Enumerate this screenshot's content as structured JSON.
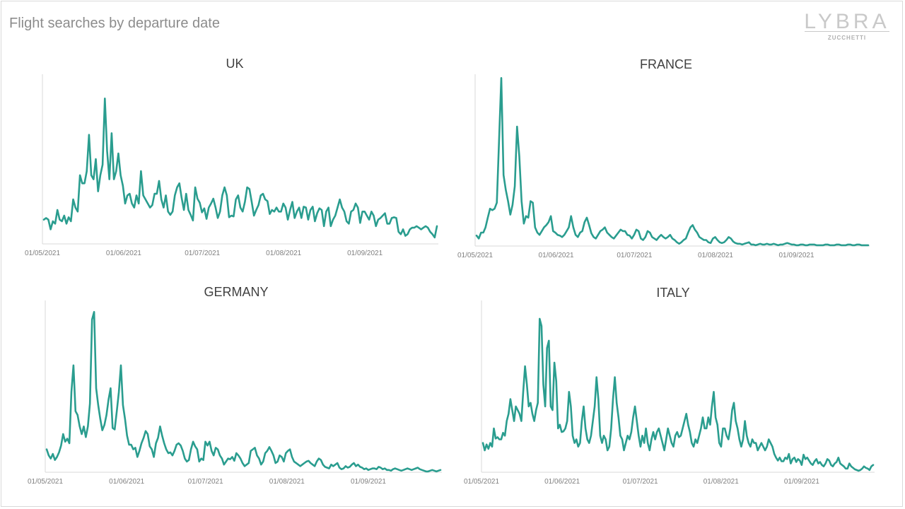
{
  "header": {
    "title": "Flight searches by departure date",
    "logo_text": "LYBRA",
    "logo_subtext": "ZUCCHETTI"
  },
  "colors": {
    "line": "#2a9d8f",
    "axis": "#d9d9d9"
  },
  "chart_data": [
    {
      "type": "line",
      "title": "UK",
      "x_ticks": [
        "01/05/2021",
        "01/06/2021",
        "01/07/2021",
        "01/08/2021",
        "01/09/2021"
      ],
      "x_range": [
        "2021-05-01",
        "2021-09-29"
      ],
      "ylim": [
        0,
        210
      ],
      "series": [
        {
          "values": [
            30,
            32,
            30,
            18,
            28,
            25,
            42,
            30,
            28,
            35,
            25,
            33,
            28,
            55,
            45,
            40,
            85,
            75,
            75,
            90,
            135,
            85,
            80,
            105,
            65,
            85,
            98,
            180,
            115,
            80,
            137,
            80,
            90,
            112,
            85,
            72,
            50,
            60,
            62,
            50,
            45,
            60,
            50,
            90,
            60,
            55,
            50,
            45,
            48,
            62,
            62,
            78,
            55,
            45,
            60,
            40,
            36,
            40,
            60,
            70,
            75,
            57,
            42,
            62,
            42,
            36,
            29,
            70,
            56,
            51,
            39,
            44,
            31,
            45,
            50,
            56,
            45,
            32,
            40,
            60,
            70,
            60,
            33,
            35,
            34,
            55,
            60,
            45,
            40,
            52,
            70,
            68,
            52,
            35,
            42,
            48,
            60,
            62,
            55,
            53,
            37,
            42,
            40,
            45,
            40,
            40,
            50,
            45,
            30,
            42,
            52,
            32,
            40,
            45,
            32,
            46,
            45,
            30,
            42,
            46,
            28,
            38,
            44,
            42,
            22,
            40,
            45,
            22,
            30,
            35,
            45,
            55,
            45,
            40,
            28,
            25,
            40,
            42,
            50,
            45,
            26,
            40,
            40,
            35,
            30,
            40,
            35,
            22,
            30,
            32,
            35,
            38,
            25,
            25,
            32,
            33,
            32,
            15,
            12,
            18,
            10,
            12,
            18,
            20,
            20,
            22,
            20,
            18,
            20,
            22,
            20,
            15,
            12,
            8,
            22
          ]
        }
      ]
    },
    {
      "type": "line",
      "title": "FRANCE",
      "x_ticks": [
        "01/05/2021",
        "01/06/2021",
        "01/07/2021",
        "01/08/2021",
        "01/09/2021"
      ],
      "x_range": [
        "2021-05-01",
        "2021-09-29"
      ],
      "ylim": [
        0,
        230
      ],
      "series": [
        {
          "values": [
            14,
            10,
            18,
            18,
            25,
            38,
            50,
            48,
            50,
            58,
            140,
            225,
            95,
            75,
            60,
            42,
            55,
            80,
            160,
            120,
            60,
            30,
            40,
            38,
            60,
            58,
            25,
            18,
            15,
            20,
            25,
            28,
            32,
            40,
            20,
            18,
            15,
            14,
            12,
            15,
            20,
            25,
            40,
            25,
            15,
            12,
            18,
            20,
            32,
            38,
            28,
            17,
            12,
            10,
            15,
            20,
            22,
            25,
            18,
            15,
            12,
            10,
            14,
            18,
            22,
            20,
            20,
            15,
            14,
            10,
            15,
            22,
            20,
            10,
            8,
            12,
            20,
            18,
            12,
            10,
            8,
            12,
            15,
            12,
            10,
            12,
            15,
            10,
            8,
            5,
            3,
            5,
            8,
            10,
            18,
            25,
            28,
            22,
            18,
            12,
            10,
            8,
            8,
            5,
            4,
            10,
            12,
            8,
            5,
            4,
            5,
            8,
            12,
            10,
            6,
            4,
            3,
            3,
            2,
            3,
            4,
            5,
            2,
            2,
            1,
            2,
            3,
            2,
            2,
            3,
            2,
            2,
            3,
            2,
            1,
            2,
            2,
            3,
            4,
            3,
            2,
            2,
            1,
            1,
            2,
            2,
            1,
            1,
            2,
            2,
            2,
            1,
            1,
            1,
            1,
            2,
            2,
            1,
            1,
            1,
            2,
            2,
            1,
            1,
            1,
            2,
            2,
            1,
            1,
            2,
            2,
            1,
            1,
            1,
            1
          ]
        }
      ]
    },
    {
      "type": "line",
      "title": "GERMANY",
      "x_ticks": [
        "01/05/2021",
        "01/06/2021",
        "01/07/2021",
        "01/08/2021",
        "01/09/2021"
      ],
      "x_range": [
        "2021-05-01",
        "2021-09-29"
      ],
      "ylim": [
        0,
        225
      ],
      "series": [
        {
          "values": [
            30,
            22,
            18,
            24,
            16,
            20,
            26,
            35,
            50,
            40,
            44,
            38,
            105,
            140,
            80,
            75,
            60,
            50,
            60,
            46,
            60,
            90,
            200,
            210,
            110,
            88,
            70,
            55,
            62,
            75,
            95,
            110,
            58,
            56,
            80,
            105,
            140,
            88,
            70,
            48,
            36,
            36,
            30,
            32,
            20,
            28,
            38,
            45,
            54,
            50,
            34,
            30,
            20,
            38,
            45,
            60,
            48,
            38,
            30,
            25,
            26,
            22,
            28,
            36,
            38,
            35,
            28,
            18,
            14,
            16,
            30,
            40,
            34,
            30,
            14,
            18,
            16,
            40,
            35,
            40,
            28,
            22,
            32,
            30,
            22,
            18,
            10,
            14,
            18,
            17,
            20,
            15,
            25,
            22,
            18,
            12,
            8,
            10,
            12,
            28,
            30,
            32,
            22,
            18,
            10,
            14,
            25,
            28,
            33,
            28,
            22,
            12,
            14,
            22,
            20,
            14,
            25,
            28,
            30,
            20,
            14,
            12,
            10,
            8,
            10,
            12,
            14,
            15,
            12,
            10,
            8,
            14,
            18,
            16,
            10,
            7,
            6,
            5,
            10,
            8,
            10,
            12,
            6,
            4,
            5,
            8,
            6,
            7,
            10,
            12,
            8,
            10,
            7,
            6,
            4,
            5,
            3,
            4,
            5,
            5,
            4,
            7,
            6,
            4,
            5,
            3,
            3,
            2,
            4,
            5,
            4,
            3,
            2,
            3,
            4,
            5,
            4,
            3,
            4,
            5,
            6,
            4,
            3,
            2,
            1,
            1,
            2,
            3,
            2,
            1,
            2,
            3
          ]
        }
      ]
    },
    {
      "type": "line",
      "title": "ITALY",
      "x_ticks": [
        "01/05/2021",
        "01/06/2021",
        "01/07/2021",
        "01/08/2021",
        "01/09/2021"
      ],
      "x_range": [
        "2021-05-01",
        "2021-09-29"
      ],
      "ylim": [
        0,
        235
      ],
      "series": [
        {
          "values": [
            40,
            30,
            38,
            32,
            40,
            35,
            60,
            46,
            48,
            45,
            45,
            54,
            50,
            70,
            80,
            100,
            85,
            70,
            90,
            85,
            80,
            70,
            110,
            145,
            120,
            90,
            95,
            80,
            70,
            85,
            95,
            210,
            200,
            120,
            90,
            170,
            180,
            90,
            85,
            150,
            125,
            60,
            65,
            55,
            56,
            60,
            70,
            110,
            90,
            50,
            40,
            45,
            35,
            40,
            70,
            90,
            60,
            45,
            40,
            50,
            70,
            90,
            130,
            100,
            50,
            40,
            50,
            45,
            30,
            35,
            60,
            100,
            130,
            95,
            75,
            50,
            45,
            30,
            40,
            50,
            45,
            55,
            75,
            90,
            70,
            50,
            35,
            50,
            40,
            60,
            40,
            30,
            45,
            55,
            45,
            55,
            60,
            50,
            40,
            30,
            45,
            60,
            50,
            40,
            35,
            50,
            55,
            48,
            50,
            60,
            70,
            80,
            65,
            55,
            40,
            35,
            45,
            40,
            50,
            60,
            75,
            60,
            60,
            75,
            65,
            90,
            110,
            75,
            65,
            40,
            35,
            60,
            60,
            50,
            45,
            60,
            85,
            95,
            70,
            60,
            45,
            35,
            45,
            70,
            50,
            40,
            35,
            45,
            40,
            40,
            30,
            35,
            40,
            35,
            30,
            35,
            45,
            40,
            35,
            25,
            20,
            16,
            20,
            15,
            15,
            20,
            18,
            25,
            12,
            18,
            20,
            14,
            18,
            16,
            10,
            24,
            18,
            20,
            16,
            12,
            10,
            15,
            18,
            12,
            14,
            10,
            8,
            12,
            18,
            16,
            10,
            8,
            12,
            14,
            20,
            12,
            10,
            8,
            5,
            5,
            12,
            8,
            6,
            4,
            3,
            2,
            3,
            5,
            8,
            6,
            5,
            3,
            8,
            10
          ]
        }
      ]
    }
  ]
}
